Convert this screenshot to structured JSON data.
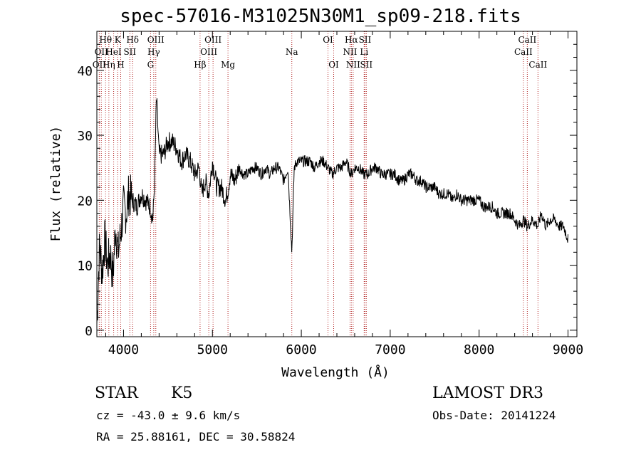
{
  "chart_data": {
    "type": "line",
    "title": "spec-57016-M31025N30M1_sp09-218.fits",
    "xlabel": "Wavelength (Å)",
    "ylabel": "Flux (relative)",
    "xlim": [
      3700,
      9100
    ],
    "ylim": [
      -1,
      46
    ],
    "xticks": [
      4000,
      5000,
      6000,
      7000,
      8000,
      9000
    ],
    "xtick_labels": [
      "4000",
      "5000",
      "6000",
      "7000",
      "8000",
      "9000"
    ],
    "yticks": [
      0,
      10,
      20,
      30,
      40
    ],
    "ytick_labels": [
      "0",
      "10",
      "20",
      "30",
      "40"
    ],
    "spectrum": {
      "x": [
        3700,
        3730,
        3760,
        3790,
        3820,
        3850,
        3880,
        3910,
        3940,
        3970,
        4000,
        4030,
        4060,
        4100,
        4150,
        4200,
        4250,
        4300,
        4330,
        4350,
        4370,
        4400,
        4450,
        4500,
        4550,
        4600,
        4650,
        4700,
        4750,
        4800,
        4850,
        4880,
        4920,
        4960,
        5000,
        5050,
        5100,
        5150,
        5180,
        5200,
        5250,
        5300,
        5350,
        5400,
        5450,
        5500,
        5550,
        5600,
        5650,
        5700,
        5750,
        5800,
        5850,
        5893,
        5920,
        5950,
        6000,
        6050,
        6100,
        6150,
        6200,
        6250,
        6300,
        6350,
        6400,
        6450,
        6500,
        6563,
        6600,
        6650,
        6700,
        6750,
        6800,
        6850,
        6900,
        6950,
        7000,
        7050,
        7100,
        7150,
        7200,
        7250,
        7300,
        7350,
        7400,
        7450,
        7500,
        7550,
        7600,
        7650,
        7700,
        7750,
        7800,
        7850,
        7900,
        7950,
        8000,
        8050,
        8100,
        8150,
        8200,
        8250,
        8300,
        8350,
        8400,
        8450,
        8498,
        8542,
        8600,
        8662,
        8700,
        8750,
        8800,
        8850,
        8900,
        8950,
        9000
      ],
      "y": [
        1,
        13,
        9,
        14,
        10,
        12,
        8,
        16,
        12,
        15,
        19,
        18,
        21,
        20,
        19,
        21,
        20,
        19,
        17,
        23,
        36,
        27,
        27,
        29,
        29,
        28,
        26,
        27,
        26,
        24,
        25,
        21,
        23,
        21,
        26,
        22,
        22,
        20,
        22,
        24,
        23,
        25,
        24,
        24,
        25,
        25,
        24,
        25,
        24,
        25,
        25,
        23,
        25,
        12,
        25,
        26,
        26,
        26,
        26,
        25,
        26,
        26,
        25,
        24,
        25,
        25,
        26,
        24,
        25,
        25,
        24,
        24,
        25,
        25,
        24,
        24,
        24,
        24,
        23,
        23,
        24,
        24,
        23,
        23,
        22,
        22,
        22,
        21,
        21,
        21,
        20,
        21,
        20,
        20,
        20,
        20,
        20,
        19,
        19,
        19,
        18,
        18,
        18,
        18,
        17,
        16,
        17,
        16,
        17,
        16,
        18,
        16,
        17,
        17,
        16,
        16,
        14
      ]
    },
    "lines": [
      {
        "wl": 3727,
        "label": "OII",
        "row": 2,
        "side": "left"
      },
      {
        "wl": 3750,
        "label": "OII",
        "row": 1,
        "side": "left"
      },
      {
        "wl": 3798,
        "label": "Hθ",
        "row": 0,
        "side": "mid"
      },
      {
        "wl": 3835,
        "label": "Hη",
        "row": 2,
        "side": "mid"
      },
      {
        "wl": 3889,
        "label": "HeI",
        "row": 1,
        "side": "mid"
      },
      {
        "wl": 3934,
        "label": "K",
        "row": 0,
        "side": "mid"
      },
      {
        "wl": 3968,
        "label": "H",
        "row": 2,
        "side": "mid"
      },
      {
        "wl": 4071,
        "label": "SII",
        "row": 1,
        "side": "mid"
      },
      {
        "wl": 4102,
        "label": "Hδ",
        "row": 0,
        "side": "mid"
      },
      {
        "wl": 4304,
        "label": "G",
        "row": 2,
        "side": "mid"
      },
      {
        "wl": 4340,
        "label": "Hγ",
        "row": 1,
        "side": "mid"
      },
      {
        "wl": 4363,
        "label": "OIII",
        "row": 0,
        "side": "mid"
      },
      {
        "wl": 4861,
        "label": "Hβ",
        "row": 2,
        "side": "mid"
      },
      {
        "wl": 4959,
        "label": "OIII",
        "row": 1,
        "side": "mid"
      },
      {
        "wl": 5007,
        "label": "OIII",
        "row": 0,
        "side": "mid"
      },
      {
        "wl": 5175,
        "label": "Mg",
        "row": 2,
        "side": "mid"
      },
      {
        "wl": 5893,
        "label": "Na",
        "row": 1,
        "side": "mid"
      },
      {
        "wl": 6300,
        "label": "OI",
        "row": 0,
        "side": "mid"
      },
      {
        "wl": 6364,
        "label": "OI",
        "row": 2,
        "side": "mid"
      },
      {
        "wl": 6548,
        "label": "NII",
        "row": 1,
        "side": "mid"
      },
      {
        "wl": 6563,
        "label": "Hα",
        "row": 0,
        "side": "mid"
      },
      {
        "wl": 6583,
        "label": "NII",
        "row": 2,
        "side": "mid"
      },
      {
        "wl": 6707,
        "label": "Li",
        "row": 1,
        "side": "mid"
      },
      {
        "wl": 6716,
        "label": "SII",
        "row": 0,
        "side": "mid"
      },
      {
        "wl": 6731,
        "label": "SII",
        "row": 2,
        "side": "mid"
      },
      {
        "wl": 8498,
        "label": "CaII",
        "row": 1,
        "side": "mid"
      },
      {
        "wl": 8542,
        "label": "CaII",
        "row": 0,
        "side": "mid"
      },
      {
        "wl": 8662,
        "label": "CaII",
        "row": 2,
        "side": "mid"
      }
    ],
    "colors": {
      "spectrum": "#000000",
      "lines": "#b22222",
      "axes": "#000000"
    }
  },
  "info": {
    "class": "STAR",
    "subclass": "K5",
    "survey": "LAMOST DR3",
    "cz": "cz = -43.0 ± 9.6 km/s",
    "obs_date": "Obs-Date: 20141224",
    "coords": "RA =  25.88161, DEC =  30.58824"
  }
}
